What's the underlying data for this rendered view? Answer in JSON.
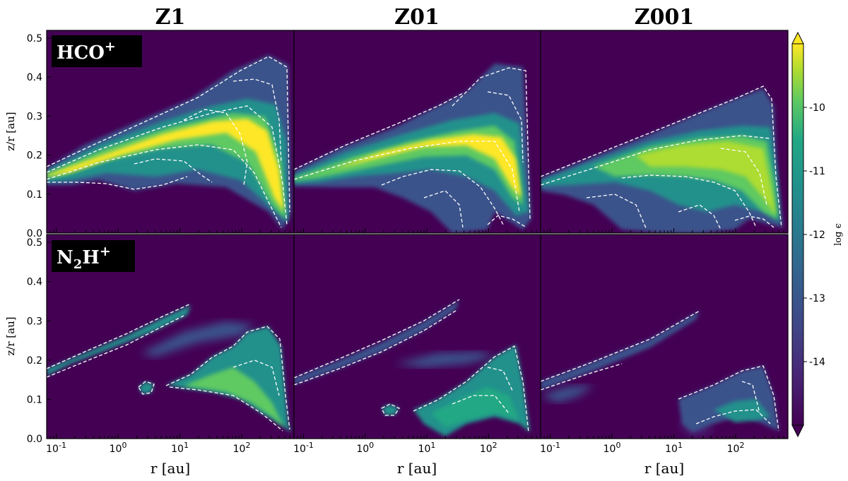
{
  "chart_data": {
    "type": "heatmap",
    "columns": [
      "Z1",
      "Z01",
      "Z001"
    ],
    "rows": [
      {
        "species": "HCO",
        "charge": "+"
      },
      {
        "species": "N2H",
        "charge": "+"
      }
    ],
    "row_labels": [
      {
        "main": "HCO",
        "sub": "",
        "rest": "",
        "sup": "+"
      },
      {
        "main": "N",
        "sub": "2",
        "rest": "H",
        "sup": "+"
      }
    ],
    "xlabel": "r [au]",
    "ylabel": "z/r [au]",
    "xscale": "log",
    "xlim": [
      0.07,
      700
    ],
    "ylim": [
      0.0,
      0.52
    ],
    "x_ticks": [
      {
        "base": "10",
        "exp": "-1",
        "value": 0.1
      },
      {
        "base": "10",
        "exp": "0",
        "value": 1
      },
      {
        "base": "10",
        "exp": "1",
        "value": 10
      },
      {
        "base": "10",
        "exp": "2",
        "value": 100
      }
    ],
    "y_ticks": [
      "0.0",
      "0.1",
      "0.2",
      "0.3",
      "0.4",
      "0.5"
    ],
    "y_tick_values": [
      0.0,
      0.1,
      0.2,
      0.3,
      0.4,
      0.5
    ],
    "colorbar": {
      "label": "log ϵ",
      "range": [
        -15,
        -9
      ],
      "extend": "both",
      "ticks": [
        "-10",
        "-11",
        "-12",
        "-13",
        "-14"
      ],
      "tick_values": [
        -10,
        -11,
        -12,
        -13,
        -14
      ],
      "colormap": "viridis"
    },
    "colors": {
      "background": "#440154",
      "low": "#3b528b",
      "mid": "#21918c",
      "high": "#5ec962",
      "peak": "#fde725"
    }
  }
}
